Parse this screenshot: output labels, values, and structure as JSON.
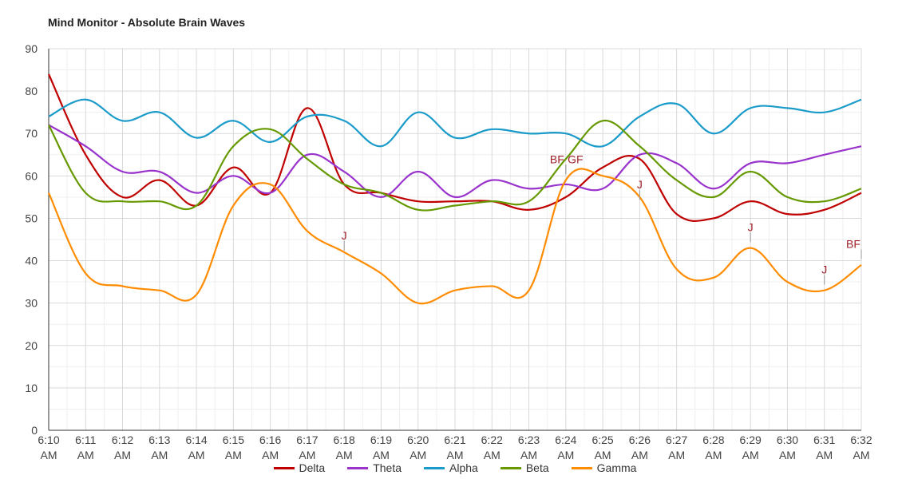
{
  "chart_title": "Mind Monitor -  Absolute Brain Waves",
  "chart_data": {
    "type": "line",
    "title": "Mind Monitor -  Absolute Brain Waves",
    "xlabel": "",
    "ylabel": "",
    "ylim": [
      0,
      90
    ],
    "yticks": [
      0,
      10,
      20,
      30,
      40,
      50,
      60,
      70,
      80,
      90
    ],
    "grid": true,
    "legend_position": "bottom",
    "x": [
      "6:10",
      "6:11",
      "6:12",
      "6:13",
      "6:14",
      "6:15",
      "6:16",
      "6:17",
      "6:18",
      "6:19",
      "6:20",
      "6:21",
      "6:22",
      "6:23",
      "6:24",
      "6:25",
      "6:26",
      "6:27",
      "6:28",
      "6:29",
      "6:30",
      "6:31",
      "6:32"
    ],
    "x_tick_labels": [
      [
        "6:10",
        "AM"
      ],
      [
        "6:11",
        "AM"
      ],
      [
        "6:12",
        "AM"
      ],
      [
        "6:13",
        "AM"
      ],
      [
        "6:14",
        "AM"
      ],
      [
        "6:15",
        "AM"
      ],
      [
        "6:16",
        "AM"
      ],
      [
        "6:17",
        "AM"
      ],
      [
        "6:18",
        "AM"
      ],
      [
        "6:19",
        "AM"
      ],
      [
        "6:20",
        "AM"
      ],
      [
        "6:21",
        "AM"
      ],
      [
        "6:22",
        "AM"
      ],
      [
        "6:23",
        "AM"
      ],
      [
        "6:24",
        "AM"
      ],
      [
        "6:25",
        "AM"
      ],
      [
        "6:26",
        "AM"
      ],
      [
        "6:27",
        "AM"
      ],
      [
        "6:28",
        "AM"
      ],
      [
        "6:29",
        "AM"
      ],
      [
        "6:30",
        "AM"
      ],
      [
        "6:31",
        "AM"
      ],
      [
        "6:32",
        "AM"
      ]
    ],
    "series": [
      {
        "name": "Delta",
        "color": "#c00000",
        "values": [
          84,
          65,
          55,
          59,
          53,
          62,
          56,
          76,
          58,
          56,
          54,
          54,
          54,
          52,
          55,
          62,
          64,
          51,
          50,
          54,
          51,
          52,
          56
        ]
      },
      {
        "name": "Theta",
        "color": "#9933cc",
        "values": [
          72,
          67,
          61,
          61,
          56,
          60,
          56,
          65,
          61,
          55,
          61,
          55,
          59,
          57,
          58,
          57,
          65,
          63,
          57,
          63,
          63,
          65,
          67
        ]
      },
      {
        "name": "Alpha",
        "color": "#1a9bc9",
        "values": [
          74,
          78,
          73,
          75,
          69,
          73,
          68,
          74,
          73,
          67,
          75,
          69,
          71,
          70,
          70,
          67,
          74,
          77,
          70,
          76,
          76,
          75,
          78
        ]
      },
      {
        "name": "Beta",
        "color": "#669900",
        "values": [
          72,
          56,
          54,
          54,
          53,
          67,
          71,
          64,
          58,
          56,
          52,
          53,
          54,
          54,
          64,
          73,
          67,
          59,
          55,
          61,
          55,
          54,
          57
        ]
      },
      {
        "name": "Gamma",
        "color": "#ff8c00",
        "values": [
          56,
          37,
          34,
          33,
          32,
          53,
          58,
          47,
          42,
          37,
          30,
          33,
          34,
          33,
          59,
          60,
          55,
          38,
          36,
          43,
          35,
          33,
          39
        ]
      }
    ],
    "annotations": [
      {
        "text": "BF",
        "x": "6:24",
        "y": 60
      },
      {
        "text": "GF",
        "x": "6:24",
        "y": 60
      },
      {
        "text": "J",
        "x": "6:18",
        "y": 42
      },
      {
        "text": "J",
        "x": "6:26",
        "y": 54
      },
      {
        "text": "J",
        "x": "6:29",
        "y": 44
      },
      {
        "text": "J",
        "x": "6:31",
        "y": 34
      },
      {
        "text": "BF",
        "x": "6:32",
        "y": 40
      }
    ],
    "annotation_color": "#a0202a",
    "grid_color": "#d9d9d9",
    "minor_grid_color": "#efefef"
  }
}
